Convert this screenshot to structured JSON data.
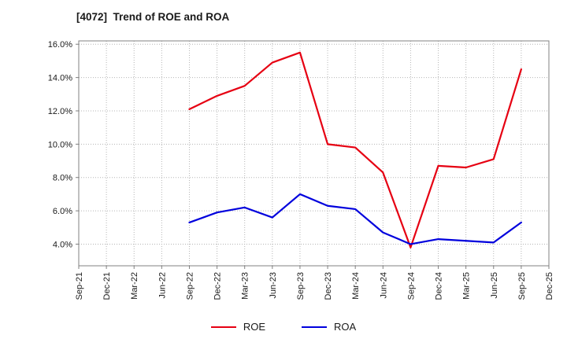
{
  "chart_data": {
    "type": "line",
    "title": "[4072]  Trend of ROE and ROA",
    "xlabel": "",
    "ylabel": "",
    "grid": true,
    "legend_position": "bottom",
    "ylim": [
      2.7,
      16.2
    ],
    "y_tick_values": [
      4,
      6,
      8,
      10,
      12,
      14,
      16
    ],
    "y_tick_labels": [
      "4.0%",
      "6.0%",
      "8.0%",
      "10.0%",
      "12.0%",
      "14.0%",
      "16.0%"
    ],
    "categories": [
      "Sep-21",
      "Dec-21",
      "Mar-22",
      "Jun-22",
      "Sep-22",
      "Dec-22",
      "Mar-23",
      "Jun-23",
      "Sep-23",
      "Dec-23",
      "Mar-24",
      "Jun-24",
      "Sep-24",
      "Dec-24",
      "Mar-25",
      "Jun-25",
      "Sep-25",
      "Dec-25"
    ],
    "series": [
      {
        "name": "ROE",
        "color": "#e60012",
        "values": [
          null,
          null,
          null,
          null,
          12.1,
          12.9,
          13.5,
          14.9,
          15.5,
          10.0,
          9.8,
          8.3,
          3.8,
          8.7,
          8.6,
          9.1,
          14.5,
          null
        ]
      },
      {
        "name": "ROA",
        "color": "#0000dd",
        "values": [
          null,
          null,
          null,
          null,
          5.3,
          5.9,
          6.2,
          5.6,
          7.0,
          6.3,
          6.1,
          4.7,
          4.0,
          4.3,
          4.2,
          4.1,
          5.3,
          null
        ]
      }
    ]
  }
}
